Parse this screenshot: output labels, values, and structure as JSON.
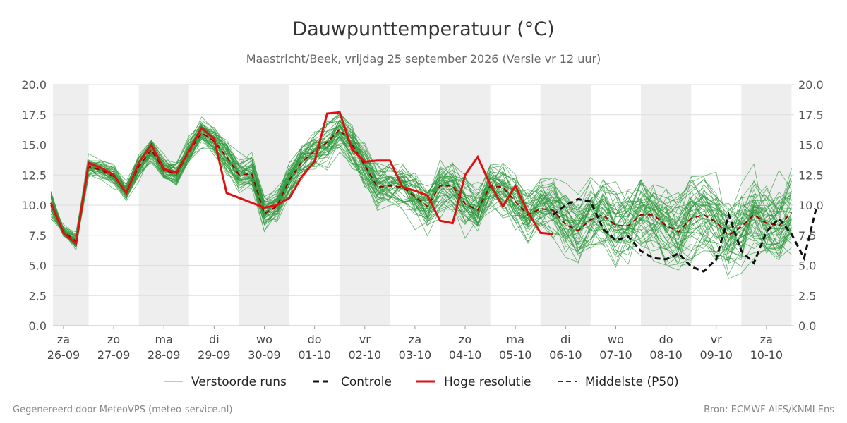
{
  "chart_data": {
    "type": "line",
    "title": "Dauwpunttemperatuur (°C)",
    "subtitle": "Maastricht/Beek, vrijdag 25 september 2026 (Versie vr 12 uur)",
    "ylim": [
      0,
      20
    ],
    "yticks": [
      "0.0",
      "2.5",
      "5.0",
      "7.5",
      "10.0",
      "12.5",
      "15.0",
      "17.5",
      "20.0"
    ],
    "xlim": [
      -0.21,
      14.55
    ],
    "grid": true,
    "legend_position": "bottom",
    "day_labels": [
      {
        "day": "za",
        "date": "26-09"
      },
      {
        "day": "zo",
        "date": "27-09"
      },
      {
        "day": "ma",
        "date": "28-09"
      },
      {
        "day": "di",
        "date": "29-09"
      },
      {
        "day": "wo",
        "date": "30-09"
      },
      {
        "day": "do",
        "date": "01-10"
      },
      {
        "day": "vr",
        "date": "02-10"
      },
      {
        "day": "za",
        "date": "03-10"
      },
      {
        "day": "zo",
        "date": "04-10"
      },
      {
        "day": "ma",
        "date": "05-10"
      },
      {
        "day": "di",
        "date": "06-10"
      },
      {
        "day": "wo",
        "date": "07-10"
      },
      {
        "day": "do",
        "date": "08-10"
      },
      {
        "day": "vr",
        "date": "09-10"
      },
      {
        "day": "za",
        "date": "10-10"
      }
    ],
    "ensemble_seed": 7,
    "series": [
      {
        "name": "Hoge resolutie",
        "color": "#dd1111",
        "dash": "solid",
        "x0": -0.25,
        "step": 0.25,
        "values": [
          10.2,
          7.7,
          6.8,
          13.5,
          13.1,
          12.5,
          11.0,
          13.5,
          15.0,
          13.0,
          12.7,
          14.5,
          16.4,
          15.5,
          11.0,
          10.6,
          10.2,
          9.8,
          10.0,
          10.6,
          12.4,
          13.6,
          17.6,
          17.7,
          14.6,
          13.6,
          13.7,
          13.7,
          11.5,
          11.2,
          10.8,
          8.7,
          8.5,
          12.5,
          14.0,
          11.7,
          9.9,
          11.6,
          9.4,
          7.7,
          7.6
        ]
      },
      {
        "name": "Controle",
        "color": "#111111",
        "dash": "8,5",
        "x0": 9.75,
        "step": 0.25,
        "values": [
          9.2,
          10.0,
          10.5,
          10.3,
          8.0,
          7.1,
          7.4,
          6.2,
          5.6,
          5.5,
          6.0,
          4.9,
          4.5,
          5.5,
          9.2,
          6.2,
          5.2,
          7.8,
          8.9,
          7.6,
          5.6,
          9.9
        ]
      },
      {
        "name": "Middelste (P50)",
        "color": "#990000",
        "dash": "7,5",
        "x0": -0.25,
        "step": 0.25,
        "values": [
          10.0,
          7.8,
          7.0,
          13.2,
          12.9,
          12.4,
          11.1,
          13.2,
          14.6,
          12.9,
          12.6,
          14.4,
          16.0,
          15.3,
          14.0,
          12.5,
          12.6,
          9.3,
          9.9,
          12.1,
          13.6,
          14.5,
          15.2,
          16.3,
          15.0,
          13.3,
          11.5,
          11.6,
          11.5,
          10.7,
          9.9,
          11.6,
          11.6,
          10.1,
          9.6,
          11.6,
          11.5,
          10.3,
          9.2,
          9.7,
          9.6,
          8.4,
          7.9,
          8.8,
          9.2,
          8.3,
          8.3,
          9.2,
          9.2,
          8.3,
          7.8,
          8.9,
          9.2,
          8.6,
          7.5,
          8.2,
          9.2,
          8.5,
          8.3,
          9.4
        ]
      },
      {
        "name": "Verstoorde runs",
        "color": "#2f9a3e",
        "dash": "solid",
        "count": 50
      }
    ],
    "legend": [
      {
        "label": "Verstoorde runs",
        "color": "#4cae5b",
        "dash": "solid",
        "width": 1
      },
      {
        "label": "Controle",
        "color": "#111111",
        "dash": "8,5",
        "width": 3
      },
      {
        "label": "Hoge resolutie",
        "color": "#dd1111",
        "dash": "solid",
        "width": 3
      },
      {
        "label": "Middelste (P50)",
        "color": "#990000",
        "dash": "7,5",
        "width": 2
      }
    ]
  },
  "footer": {
    "left": "Gegenereerd door MeteoVPS (meteo-service.nl)",
    "right": "Bron: ECMWF AIFS/KNMI Ens"
  }
}
